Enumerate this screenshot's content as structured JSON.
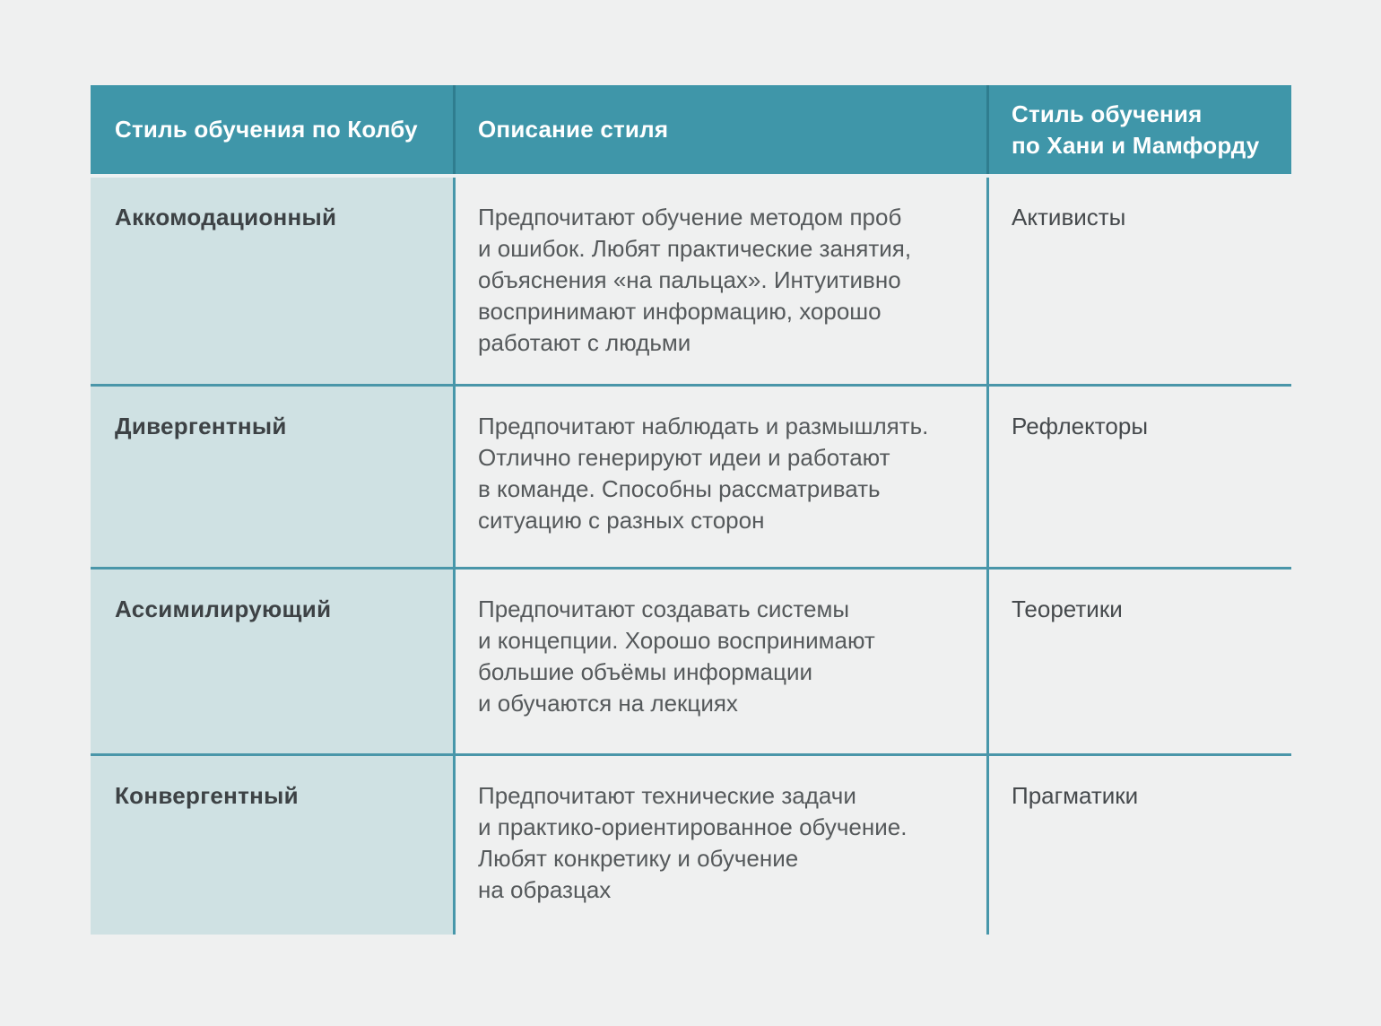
{
  "colors": {
    "page_background": "#eff0f0",
    "header_background": "#3f96a9",
    "kolb_column_background": "#cfe1e3",
    "border_teal": "#4a96a9",
    "header_text": "#ffffff",
    "body_text": "#55595b"
  },
  "table": {
    "headers": {
      "kolb": "Стиль обучения по Колбу",
      "description": "Описание стиля",
      "honey_mumford": "Стиль обучения\nпо Хани и Мамфорду"
    },
    "rows": [
      {
        "kolb": "Аккомодационный",
        "description": "Предпочитают обучение методом проб\nи ошибок. Любят практические занятия,\nобъяснения «на пальцах». Интуитивно\nвоспринимают информацию, хорошо\nработают с людьми",
        "honey_mumford": "Активисты"
      },
      {
        "kolb": "Дивергентный",
        "description": "Предпочитают наблюдать и размышлять.\nОтлично генерируют идеи и работают\nв команде. Способны рассматривать\nситуацию с разных сторон",
        "honey_mumford": "Рефлекторы"
      },
      {
        "kolb": "Ассимилирующий",
        "description": "Предпочитают создавать системы\nи концепции. Хорошо воспринимают\nбольшие объёмы информации\nи обучаются на лекциях",
        "honey_mumford": "Теоретики"
      },
      {
        "kolb": "Конвергентный",
        "description": "Предпочитают технические задачи\nи практико-ориентированное обучение.\nЛюбят конкретику и обучение\nна образцах",
        "honey_mumford": "Прагматики"
      }
    ]
  }
}
